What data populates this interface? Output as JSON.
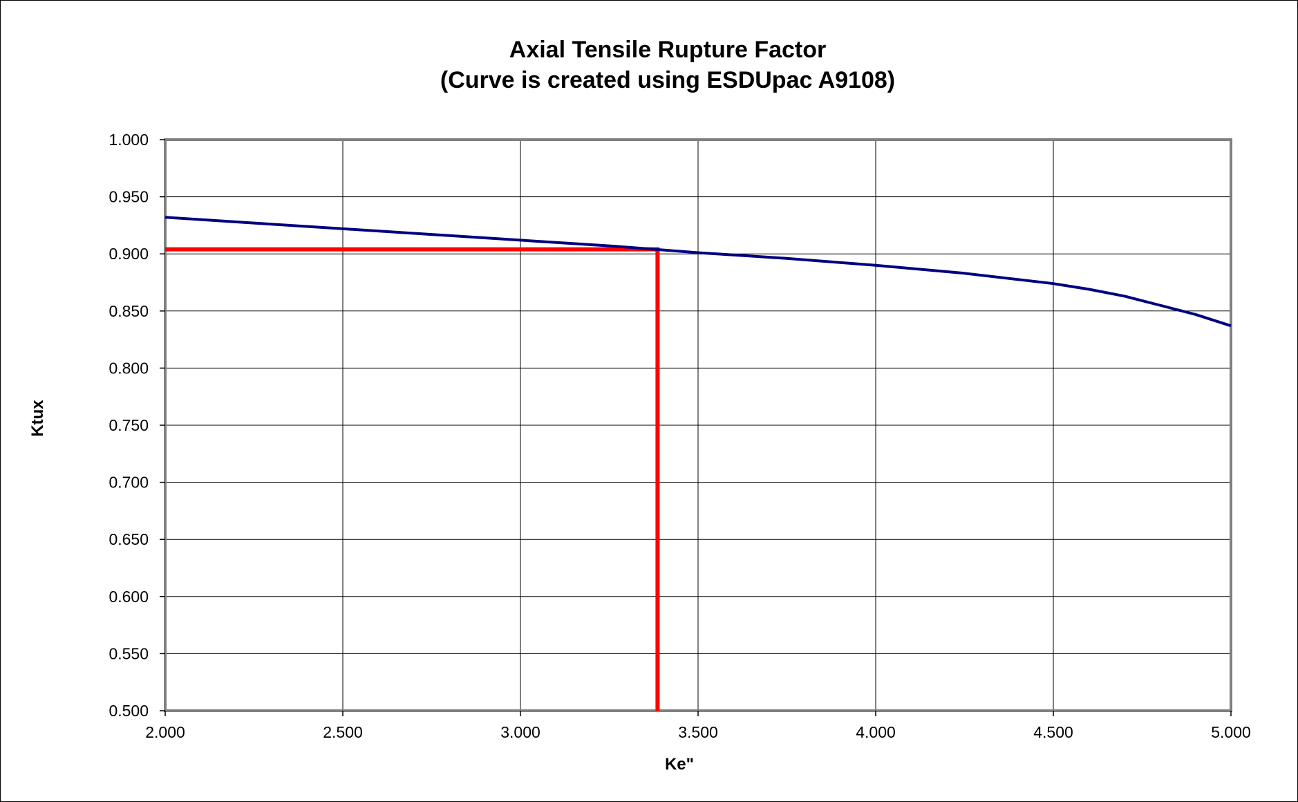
{
  "chart_data": {
    "type": "line",
    "title": "Axial Tensile Rupture Factor",
    "subtitle": "(Curve is created using ESDUpac A9108)",
    "xlabel": "Ke\"",
    "ylabel": "Ktux",
    "xlim": [
      2.0,
      5.0
    ],
    "ylim": [
      0.5,
      1.0
    ],
    "x_ticks": [
      "2.000",
      "2.500",
      "3.000",
      "3.500",
      "4.000",
      "4.500",
      "5.000"
    ],
    "y_ticks": [
      "1.000",
      "0.950",
      "0.900",
      "0.850",
      "0.800",
      "0.750",
      "0.700",
      "0.650",
      "0.600",
      "0.550",
      "0.500"
    ],
    "grid": true,
    "legend": "none",
    "series": [
      {
        "color": "#000080",
        "points": [
          [
            2.0,
            0.932
          ],
          [
            2.25,
            0.927
          ],
          [
            2.5,
            0.922
          ],
          [
            2.75,
            0.917
          ],
          [
            3.0,
            0.912
          ],
          [
            3.25,
            0.907
          ],
          [
            3.5,
            0.901
          ],
          [
            3.75,
            0.896
          ],
          [
            4.0,
            0.89
          ],
          [
            4.25,
            0.883
          ],
          [
            4.5,
            0.874
          ],
          [
            4.6,
            0.869
          ],
          [
            4.7,
            0.863
          ],
          [
            4.8,
            0.855
          ],
          [
            4.9,
            0.847
          ],
          [
            5.0,
            0.837
          ]
        ]
      }
    ],
    "annotations": {
      "color": "#ff0000",
      "reference_x": 3.386,
      "reference_y": 0.904
    }
  }
}
